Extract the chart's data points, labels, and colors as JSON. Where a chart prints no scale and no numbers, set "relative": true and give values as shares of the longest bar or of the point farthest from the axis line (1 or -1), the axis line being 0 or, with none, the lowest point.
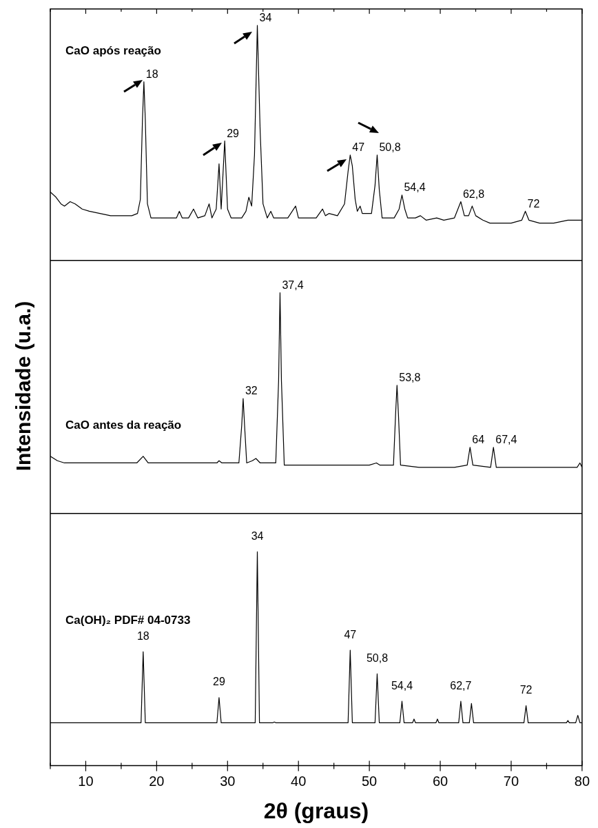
{
  "chart_data": {
    "type": "line",
    "xlabel": "2θ (graus)",
    "ylabel": "Intensidade (u.a.)",
    "relative": true,
    "legend": "top left",
    "xlim": [
      5,
      80
    ],
    "tick_labels": "x",
    "xticks": [
      {
        "value": 5,
        "label": null
      },
      10,
      {
        "value": 15,
        "label": null
      },
      20,
      {
        "value": 25,
        "label": null
      },
      30,
      {
        "value": 35,
        "label": null
      },
      40,
      {
        "value": 45,
        "label": null
      },
      50,
      {
        "value": 55,
        "label": null
      },
      60,
      {
        "value": 65,
        "label": null
      },
      70,
      {
        "value": 75,
        "label": null
      },
      80
    ],
    "ref_lines": [
      {
        "axis": "y",
        "value": 0.6825
      },
      {
        "axis": "y",
        "value": 0.3408
      }
    ],
    "series": [
      {
        "name": "CaO após reação",
        "color": "#000000",
        "x": [
          5,
          5.8,
          6.5,
          7,
          7.8,
          8.5,
          9.5,
          10.5,
          12,
          13.5,
          15,
          16.5,
          17.3,
          17.7,
          18.0,
          18.2,
          18.4,
          18.7,
          19.2,
          20.5,
          22,
          22.8,
          23.2,
          23.6,
          24.5,
          25.2,
          25.8,
          26.8,
          27.4,
          27.8,
          28.4,
          28.8,
          29.1,
          29.6,
          30.0,
          30.5,
          32.0,
          32.6,
          33.0,
          33.4,
          33.8,
          34.2,
          34.6,
          35.0,
          35.6,
          36.1,
          36.5,
          38.5,
          39.6,
          40.0,
          42.5,
          43.4,
          43.8,
          44.3,
          45.5,
          46.5,
          47.0,
          47.3,
          47.6,
          48.0,
          48.3,
          48.7,
          49.0,
          50.3,
          50.8,
          51.1,
          51.4,
          51.8,
          53.5,
          54.2,
          54.6,
          55.0,
          55.4,
          56.5,
          57.2,
          58.0,
          59.5,
          60.5,
          62.0,
          62.9,
          63.4,
          64.0,
          64.5,
          65.0,
          66,
          67,
          70,
          71.5,
          72.0,
          72.5,
          74,
          76,
          78,
          80
        ],
        "values": [
          0.775,
          0.768,
          0.759,
          0.756,
          0.762,
          0.759,
          0.752,
          0.749,
          0.746,
          0.743,
          0.743,
          0.743,
          0.746,
          0.765,
          0.873,
          0.924,
          0.873,
          0.759,
          0.74,
          0.74,
          0.74,
          0.74,
          0.749,
          0.74,
          0.74,
          0.752,
          0.74,
          0.743,
          0.759,
          0.74,
          0.752,
          0.813,
          0.752,
          0.844,
          0.752,
          0.74,
          0.74,
          0.749,
          0.768,
          0.756,
          0.825,
          1.0,
          0.857,
          0.759,
          0.74,
          0.749,
          0.74,
          0.74,
          0.756,
          0.74,
          0.74,
          0.752,
          0.743,
          0.746,
          0.743,
          0.759,
          0.803,
          0.825,
          0.81,
          0.765,
          0.749,
          0.756,
          0.746,
          0.746,
          0.784,
          0.825,
          0.778,
          0.74,
          0.74,
          0.752,
          0.771,
          0.752,
          0.74,
          0.74,
          0.743,
          0.737,
          0.74,
          0.737,
          0.74,
          0.762,
          0.743,
          0.743,
          0.756,
          0.743,
          0.737,
          0.733,
          0.733,
          0.737,
          0.749,
          0.737,
          0.733,
          0.733,
          0.737,
          0.737
        ]
      },
      {
        "name": "CaO antes da reação",
        "color": "#000000",
        "x": [
          5,
          6,
          7,
          7.8,
          10,
          14,
          17.2,
          18.1,
          18.8,
          22,
          26,
          28.5,
          28.8,
          29.2,
          31.6,
          32.0,
          32.2,
          32.4,
          32.7,
          33.5,
          34.0,
          34.6,
          36.8,
          37.2,
          37.4,
          37.6,
          38.0,
          40,
          44,
          47,
          48,
          50,
          51.0,
          51.5,
          53.4,
          53.7,
          53.9,
          54.1,
          54.4,
          57,
          62,
          63.8,
          64.2,
          64.6,
          67.1,
          67.5,
          67.9,
          70,
          75,
          79.3,
          79.7,
          80
        ],
        "values": [
          0.418,
          0.412,
          0.409,
          0.409,
          0.409,
          0.409,
          0.409,
          0.418,
          0.409,
          0.409,
          0.409,
          0.409,
          0.412,
          0.409,
          0.409,
          0.46,
          0.496,
          0.46,
          0.409,
          0.412,
          0.415,
          0.409,
          0.409,
          0.52,
          0.639,
          0.52,
          0.406,
          0.406,
          0.406,
          0.406,
          0.406,
          0.406,
          0.409,
          0.406,
          0.406,
          0.475,
          0.514,
          0.475,
          0.406,
          0.403,
          0.403,
          0.406,
          0.43,
          0.406,
          0.403,
          0.43,
          0.403,
          0.403,
          0.403,
          0.403,
          0.409,
          0.403
        ]
      },
      {
        "name": "Ca(OH)₂ PDF# 04-0733",
        "color": "#000000",
        "x": [
          5,
          17.8,
          18.1,
          18.4,
          28.5,
          28.8,
          29.1,
          33.9,
          34.2,
          34.5,
          36.4,
          36.6,
          36.8,
          47.0,
          47.3,
          47.6,
          50.8,
          51.1,
          51.4,
          54.3,
          54.6,
          54.9,
          56.1,
          56.3,
          56.5,
          59.4,
          59.6,
          59.8,
          62.6,
          62.9,
          63.2,
          64.1,
          64.4,
          64.7,
          71.8,
          72.1,
          72.4,
          77.8,
          78.0,
          78.2,
          79.1,
          79.4,
          79.7,
          80
        ],
        "values": [
          0.058,
          0.058,
          0.154,
          0.058,
          0.058,
          0.092,
          0.058,
          0.058,
          0.289,
          0.058,
          0.058,
          0.059,
          0.058,
          0.058,
          0.156,
          0.058,
          0.058,
          0.124,
          0.058,
          0.058,
          0.087,
          0.058,
          0.058,
          0.063,
          0.058,
          0.058,
          0.063,
          0.058,
          0.058,
          0.087,
          0.058,
          0.058,
          0.084,
          0.058,
          0.058,
          0.081,
          0.058,
          0.058,
          0.061,
          0.058,
          0.058,
          0.068,
          0.058,
          0.058
        ]
      }
    ],
    "annotations": [
      {
        "text": "18",
        "x": 18.2,
        "y": 0.924
      },
      {
        "text": "29",
        "x": 29.6,
        "y": 0.844
      },
      {
        "text": "34",
        "x": 34.2,
        "y": 1.0
      },
      {
        "text": "47",
        "x": 47.3,
        "y": 0.825
      },
      {
        "text": "50,8",
        "x": 51.1,
        "y": 0.825
      },
      {
        "text": "54,4",
        "x": 54.6,
        "y": 0.771
      },
      {
        "text": "62,8",
        "x": 62.9,
        "y": 0.762
      },
      {
        "text": "72",
        "x": 72.0,
        "y": 0.749
      },
      {
        "text": "32",
        "x": 32.2,
        "y": 0.496
      },
      {
        "text": "37,4",
        "x": 37.4,
        "y": 0.639
      },
      {
        "text": "53,8",
        "x": 53.9,
        "y": 0.514
      },
      {
        "text": "64",
        "x": 64.2,
        "y": 0.43
      },
      {
        "text": "67,4",
        "x": 67.5,
        "y": 0.43
      },
      {
        "text": "18",
        "x": 18.1,
        "y": 0.154
      },
      {
        "text": "29",
        "x": 28.8,
        "y": 0.092
      },
      {
        "text": "34",
        "x": 34.2,
        "y": 0.289
      },
      {
        "text": "47",
        "x": 47.3,
        "y": 0.156
      },
      {
        "text": "50,8",
        "x": 51.1,
        "y": 0.124
      },
      {
        "text": "54,4",
        "x": 54.6,
        "y": 0.087
      },
      {
        "text": "62,7",
        "x": 62.9,
        "y": 0.087
      },
      {
        "text": "72",
        "x": 72.1,
        "y": 0.081
      }
    ]
  }
}
